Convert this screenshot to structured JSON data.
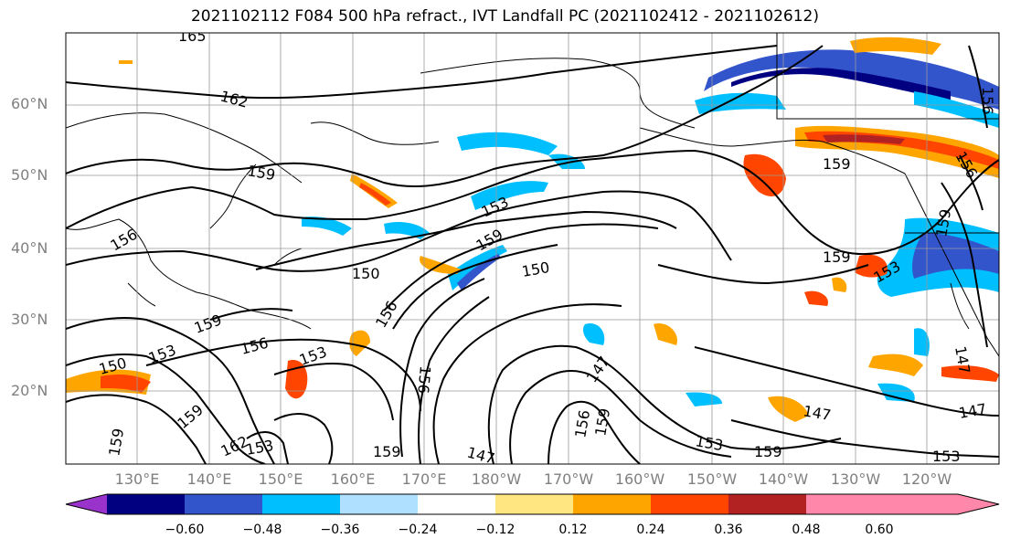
{
  "title": "2021102112 F084 500 hPa refract., IVT Landfall PC (2021102412 - 2021102612)",
  "lat_labels": [
    "60°N",
    "50°N",
    "40°N",
    "30°N",
    "20°N"
  ],
  "lon_labels": [
    "130°E",
    "140°E",
    "150°E",
    "160°E",
    "170°E",
    "180°W",
    "170°W",
    "160°W",
    "150°W",
    "140°W",
    "130°W",
    "120°W"
  ],
  "colorbar": {
    "ticks": [
      "−0.60",
      "−0.48",
      "−0.36",
      "−0.24",
      "−0.12",
      "0.12",
      "0.24",
      "0.36",
      "0.48",
      "0.60"
    ],
    "colors": [
      "#9933cc",
      "#000080",
      "#3355cc",
      "#00bfff",
      "#b0e0ff",
      "#ffffff",
      "#ffe680",
      "#ffa500",
      "#ff4500",
      "#b22222",
      "#ff88aa"
    ]
  },
  "contour_labels": [
    "165",
    "162",
    "159",
    "156",
    "153",
    "150",
    "147"
  ]
}
